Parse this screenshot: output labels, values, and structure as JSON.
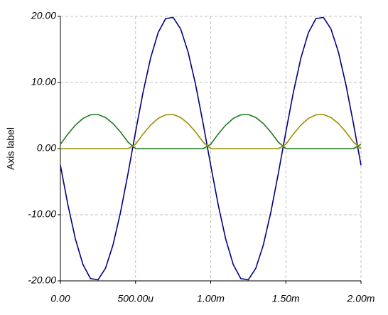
{
  "chart_data": {
    "type": "line",
    "y_label": "Axis label",
    "x": [
      0,
      5e-05,
      0.0001,
      0.00015,
      0.0002,
      0.00025,
      0.0003,
      0.00035,
      0.0004,
      0.00045,
      0.0005,
      0.00055,
      0.0006,
      0.00065,
      0.0007,
      0.00075,
      0.0008,
      0.00085,
      0.0009,
      0.00095,
      0.001,
      0.00105,
      0.0011,
      0.00115,
      0.0012,
      0.00125,
      0.0013,
      0.00135,
      0.0014,
      0.00145,
      0.0015,
      0.00155,
      0.0016,
      0.00165,
      0.0017,
      0.00175,
      0.0018,
      0.00185,
      0.0019,
      0.00195,
      0.002
    ],
    "series": [
      {
        "color": "#000080",
        "values": [
          -2.51,
          -8.51,
          -13.69,
          -17.52,
          -19.65,
          -19.84,
          -18.1,
          -14.58,
          -9.63,
          -3.75,
          2.51,
          8.51,
          13.69,
          17.52,
          19.65,
          19.84,
          18.1,
          14.58,
          9.63,
          3.75,
          -2.51,
          -8.51,
          -13.69,
          -17.52,
          -19.65,
          -19.84,
          -18.1,
          -14.58,
          -9.63,
          -3.75,
          2.51,
          8.51,
          13.69,
          17.52,
          19.65,
          19.84,
          18.1,
          14.58,
          9.63,
          3.75,
          -2.51
        ]
      },
      {
        "color": "#1f7a1f",
        "values": [
          0.65,
          2.21,
          3.56,
          4.56,
          5.11,
          5.16,
          4.71,
          3.79,
          2.5,
          0.98,
          0,
          0,
          0,
          0,
          0,
          0,
          0,
          0,
          0,
          0,
          0.65,
          2.21,
          3.56,
          4.56,
          5.11,
          5.16,
          4.71,
          3.79,
          2.5,
          0.98,
          0,
          0,
          0,
          0,
          0,
          0,
          0,
          0,
          0,
          0,
          0.65
        ]
      },
      {
        "color": "#9a9000",
        "values": [
          0,
          0,
          0,
          0,
          0,
          0,
          0,
          0,
          0,
          0,
          0.65,
          2.21,
          3.56,
          4.56,
          5.11,
          5.16,
          4.71,
          3.79,
          2.5,
          0.98,
          0,
          0,
          0,
          0,
          0,
          0,
          0,
          0,
          0,
          0,
          0.65,
          2.21,
          3.56,
          4.56,
          5.11,
          5.16,
          4.71,
          3.79,
          2.5,
          0.98,
          0
        ]
      }
    ],
    "xlim": [
      0,
      0.002
    ],
    "ylim": [
      -20,
      20
    ],
    "xticks": [
      {
        "value": 0,
        "label": "0.00"
      },
      {
        "value": 0.0005,
        "label": "500.00u"
      },
      {
        "value": 0.001,
        "label": "1.00m"
      },
      {
        "value": 0.0015,
        "label": "1.50m"
      },
      {
        "value": 0.002,
        "label": "2.00m"
      }
    ],
    "yticks": [
      {
        "value": -20,
        "label": "-20.00"
      },
      {
        "value": -10,
        "label": "-10.00"
      },
      {
        "value": 0,
        "label": "0.00"
      },
      {
        "value": 10,
        "label": "10.00"
      },
      {
        "value": 20,
        "label": "20.00"
      }
    ],
    "grid": true
  }
}
